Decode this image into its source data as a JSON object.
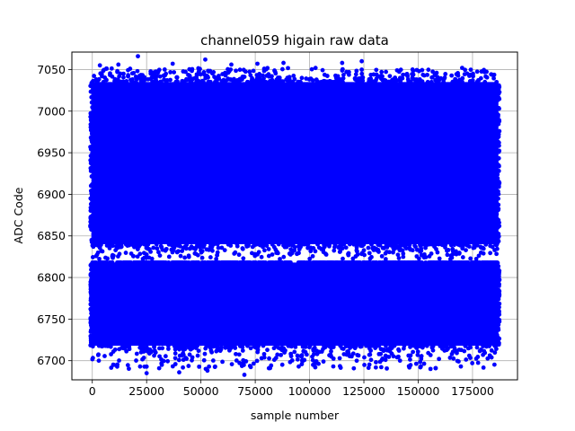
{
  "chart_data": {
    "type": "scatter",
    "title": "channel059 higain raw data",
    "xlabel": "sample number",
    "ylabel": "ADC Code",
    "xlim": [
      -9400,
      195700
    ],
    "ylim": [
      6677,
      7071
    ],
    "xticks": [
      0,
      25000,
      50000,
      75000,
      100000,
      125000,
      150000,
      175000
    ],
    "yticks": [
      6700,
      6750,
      6800,
      6850,
      6900,
      6950,
      7000,
      7050
    ],
    "grid": true,
    "marker_color": "#0000ff",
    "series": [
      {
        "name": "",
        "x_range": [
          0,
          186500
        ],
        "bands": [
          {
            "y_core": [
              6840,
              7035
            ],
            "y_tail": [
              6822,
              7052
            ]
          },
          {
            "y_core": [
              6718,
              6818
            ],
            "y_tail": [
              6690,
              6818
            ]
          }
        ],
        "outliers": [
          {
            "x": 21000,
            "y": 7066
          },
          {
            "x": 52000,
            "y": 7062
          },
          {
            "x": 12000,
            "y": 7056
          },
          {
            "x": 37000,
            "y": 7057
          },
          {
            "x": 64000,
            "y": 7056
          },
          {
            "x": 76000,
            "y": 7057
          },
          {
            "x": 88000,
            "y": 7058
          },
          {
            "x": 115000,
            "y": 7058
          },
          {
            "x": 124000,
            "y": 7060
          },
          {
            "x": 3500,
            "y": 7055
          },
          {
            "x": 22000,
            "y": 6693
          },
          {
            "x": 25000,
            "y": 6685
          },
          {
            "x": 40000,
            "y": 6686
          },
          {
            "x": 53000,
            "y": 6688
          },
          {
            "x": 70000,
            "y": 6683
          },
          {
            "x": 95000,
            "y": 6693
          },
          {
            "x": 103000,
            "y": 6697
          },
          {
            "x": 151000,
            "y": 6692
          },
          {
            "x": 158000,
            "y": 6691
          },
          {
            "x": 3000,
            "y": 6700
          },
          {
            "x": 32000,
            "y": 6695
          }
        ]
      }
    ]
  }
}
